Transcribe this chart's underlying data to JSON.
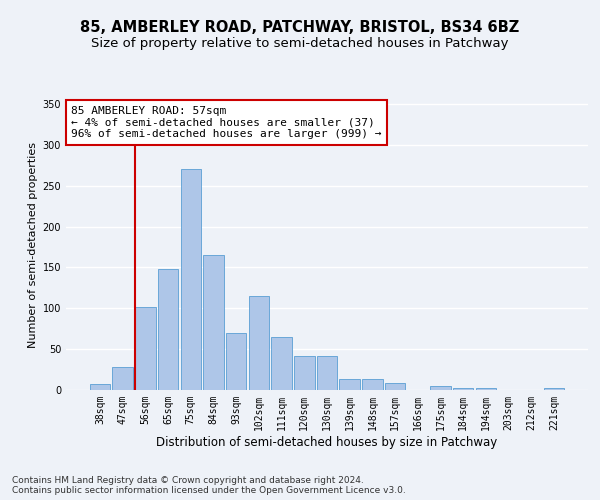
{
  "title_line1": "85, AMBERLEY ROAD, PATCHWAY, BRISTOL, BS34 6BZ",
  "title_line2": "Size of property relative to semi-detached houses in Patchway",
  "xlabel": "Distribution of semi-detached houses by size in Patchway",
  "ylabel": "Number of semi-detached properties",
  "categories": [
    "38sqm",
    "47sqm",
    "56sqm",
    "65sqm",
    "75sqm",
    "84sqm",
    "93sqm",
    "102sqm",
    "111sqm",
    "120sqm",
    "130sqm",
    "139sqm",
    "148sqm",
    "157sqm",
    "166sqm",
    "175sqm",
    "184sqm",
    "194sqm",
    "203sqm",
    "212sqm",
    "221sqm"
  ],
  "values": [
    7,
    28,
    101,
    148,
    271,
    165,
    70,
    115,
    65,
    42,
    42,
    13,
    13,
    9,
    0,
    5,
    2,
    2,
    0,
    0,
    2
  ],
  "bar_color": "#aec6e8",
  "bar_edge_color": "#5a9fd4",
  "vline_color": "#cc0000",
  "annotation_text": "85 AMBERLEY ROAD: 57sqm\n← 4% of semi-detached houses are smaller (37)\n96% of semi-detached houses are larger (999) →",
  "annotation_box_color": "white",
  "annotation_box_edge": "#cc0000",
  "ylim": [
    0,
    355
  ],
  "yticks": [
    0,
    50,
    100,
    150,
    200,
    250,
    300,
    350
  ],
  "background_color": "#eef2f8",
  "footer_text": "Contains HM Land Registry data © Crown copyright and database right 2024.\nContains public sector information licensed under the Open Government Licence v3.0.",
  "grid_color": "#ffffff",
  "title_fontsize": 10.5,
  "subtitle_fontsize": 9.5,
  "xlabel_fontsize": 8.5,
  "ylabel_fontsize": 8,
  "tick_fontsize": 7,
  "annotation_fontsize": 8,
  "footer_fontsize": 6.5
}
